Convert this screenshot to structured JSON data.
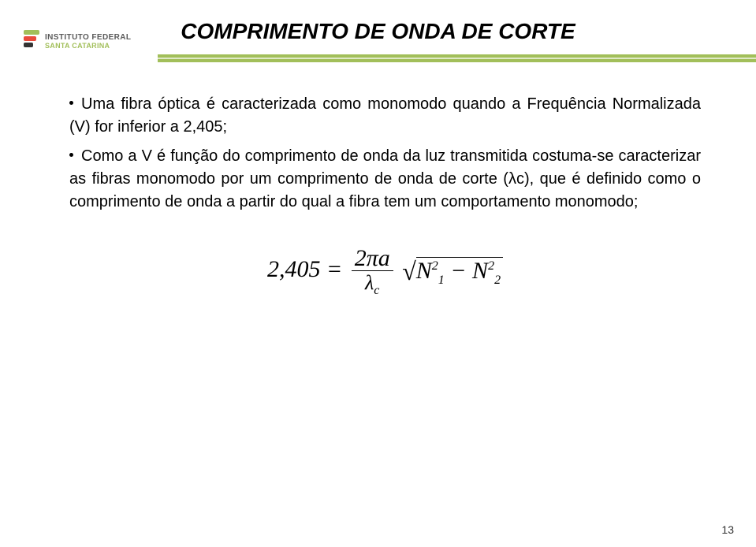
{
  "logo": {
    "line1": "INSTITUTO FEDERAL",
    "line2": "SANTA CATARINA"
  },
  "title": "COMPRIMENTO DE ONDA DE CORTE",
  "bullets": [
    "Uma fibra óptica é caracterizada como monomodo quando a Frequência Normalizada (V) for inferior a 2,405;",
    "Como a V é função do comprimento de onda da luz transmitida costuma-se caracterizar as fibras monomodo por um comprimento de onda de corte (λc), que é definido como o comprimento de onda a partir do qual a fibra tem um comportamento monomodo;"
  ],
  "formula": {
    "lhs": "2,405",
    "eq": "=",
    "num_2pi_a": "2πa",
    "den_lambda": "λ",
    "den_lambda_sub": "c",
    "N": "N",
    "exp": "2",
    "sub1": "1",
    "sub2": "2",
    "minus": "−"
  },
  "page_number": "13",
  "colors": {
    "accent_green": "#a2bf5a",
    "text": "#000000"
  }
}
